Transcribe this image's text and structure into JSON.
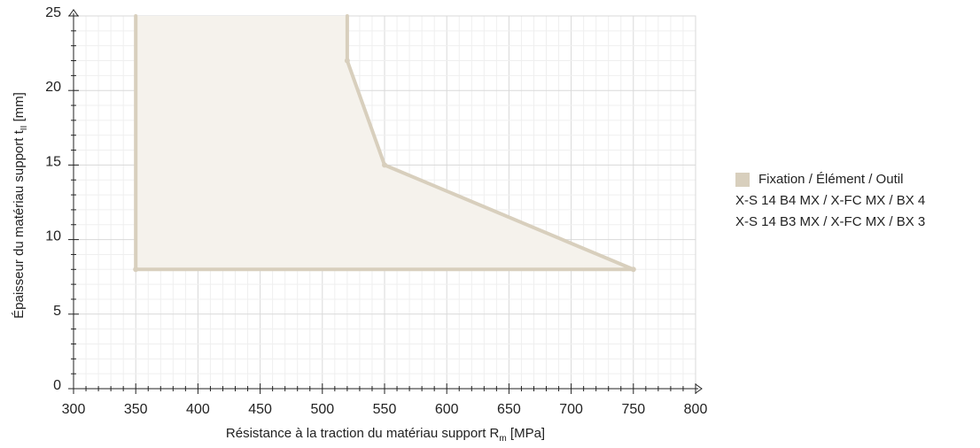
{
  "chart_data": {
    "type": "area",
    "xlabel": "Résistance à la traction du matériau support R",
    "xlabel_sub": "m",
    "xlabel_unit": " [MPa]",
    "ylabel": "Épaisseur du matériau support t",
    "ylabel_sub": "II",
    "ylabel_unit": " [mm]",
    "xlim": [
      300,
      800
    ],
    "ylim": [
      0,
      25
    ],
    "xticks": [
      "300",
      "350",
      "400",
      "450",
      "500",
      "550",
      "600",
      "650",
      "700",
      "750",
      "800"
    ],
    "yticks": [
      "0",
      "5",
      "10",
      "15",
      "20",
      "25"
    ],
    "grid": true,
    "legend_position": "right",
    "series": [
      {
        "points": [
          [
            350,
            25
          ],
          [
            350,
            8
          ],
          [
            750,
            8
          ],
          [
            550,
            15
          ],
          [
            520,
            22
          ],
          [
            520,
            25
          ]
        ],
        "markers": [
          [
            350,
            8
          ],
          [
            750,
            8
          ],
          [
            550,
            15
          ],
          [
            520,
            22
          ]
        ],
        "color": "#d8cfbd",
        "fill": "#f5f2ec"
      }
    ],
    "legend": {
      "header": "Fixation / Élément / Outil",
      "entries": [
        "X-S 14 B4 MX / X-FC MX / BX 4",
        "X-S 14 B3 MX / X-FC MX / BX 3"
      ],
      "swatch_color": "#d8cfbd"
    }
  }
}
